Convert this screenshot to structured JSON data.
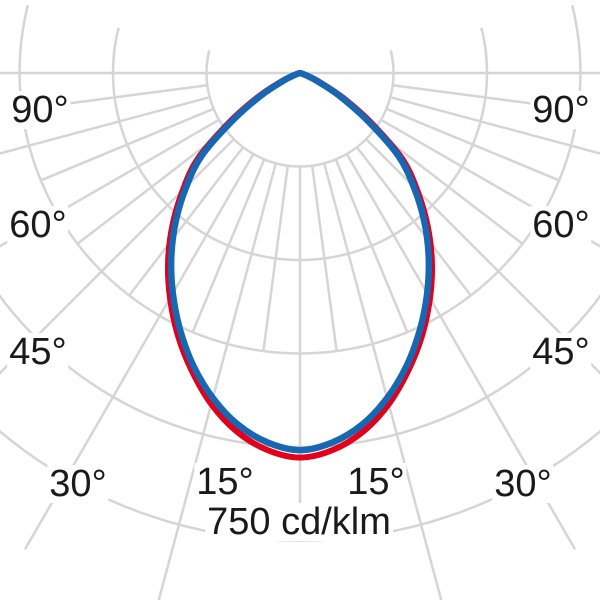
{
  "colors": {
    "background": "#ffffff",
    "grid": "#d5d5d5",
    "text": "#1a1a1a",
    "red_curve": "#e2001a",
    "blue_curve": "#1767b2"
  },
  "labels": {
    "left_90": "90°",
    "right_90": "90°",
    "left_60": "60°",
    "right_60": "60°",
    "left_45": "45°",
    "right_45": "45°",
    "left_30": "30°",
    "right_30": "30°",
    "left_15": "15°",
    "right_15": "15°",
    "scale": "750 cd/klm"
  },
  "chart_data": {
    "type": "line",
    "polar": true,
    "title": "",
    "description": "Polar luminous intensity distribution curve, 0° pointing down, symmetric left/right",
    "angle_axis": {
      "unit": "deg",
      "zero_direction": "down",
      "major_grid_step_deg": 15,
      "minor_grid_step_deg": 7.5,
      "labeled_ticks_deg": [
        15,
        30,
        45,
        60,
        90
      ],
      "grid_extent_deg": 104
    },
    "radial_axis": {
      "unit": "cd/klm",
      "ring_values": [
        150,
        300,
        450,
        600,
        750
      ],
      "ring_step_cd": 150,
      "outer_ring_label": "750 cd/klm"
    },
    "series": [
      {
        "name": "red_curve",
        "color": "#e2001a",
        "gamma_deg": [
          0,
          5,
          10,
          15,
          20,
          25,
          30,
          35,
          40,
          45,
          50,
          55,
          60,
          65,
          70,
          75
        ],
        "cd_per_klm": [
          617,
          607,
          584,
          550,
          508,
          464,
          417,
          369,
          318,
          266,
          214,
          140,
          80,
          36,
          11,
          0
        ]
      },
      {
        "name": "blue_curve",
        "color": "#1767b2",
        "gamma_deg": [
          0,
          5,
          10,
          15,
          20,
          25,
          30,
          35,
          40,
          45,
          50,
          55,
          60,
          65,
          70,
          75
        ],
        "cd_per_klm": [
          605,
          595,
          573,
          540,
          500,
          455,
          408,
          360,
          310,
          258,
          205,
          130,
          72,
          30,
          8,
          0
        ]
      }
    ],
    "symmetric": true
  }
}
